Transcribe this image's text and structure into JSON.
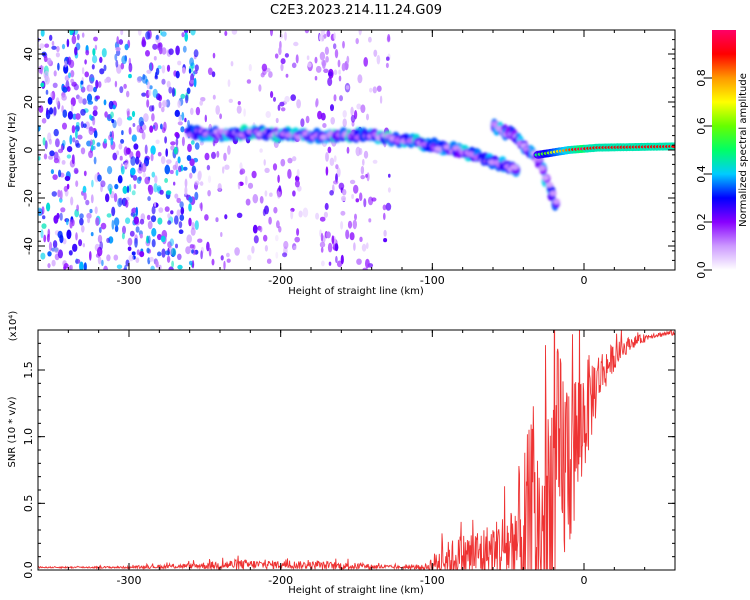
{
  "figure": {
    "title": "C2E3.2023.214.11.24.G09"
  },
  "chart_data": [
    {
      "type": "heatmap",
      "title": "C2E3.2023.214.11.24.G09",
      "xlabel": "Height of straight line (km)",
      "ylabel": "Frequency (Hz)",
      "xlim": [
        -360,
        60
      ],
      "ylim": [
        -50,
        50
      ],
      "x_ticks": [
        -300,
        -200,
        -100,
        0
      ],
      "x_tick_labels": [
        "-300",
        "-200",
        "-100",
        "0"
      ],
      "y_ticks": [
        -40,
        -20,
        0,
        20,
        40
      ],
      "y_tick_labels": [
        "-40",
        "-20",
        "0",
        "20",
        "40"
      ],
      "colorbar": {
        "label": "Normalized spectral amplitude",
        "range": [
          0,
          1
        ],
        "ticks": [
          0.0,
          0.2,
          0.4,
          0.6,
          0.8
        ],
        "tick_labels": [
          "0.0",
          "0.2",
          "0.4",
          "0.6",
          "0.8"
        ],
        "colors": [
          "#ffffff",
          "#cc99ff",
          "#8800ff",
          "#0000ff",
          "#00ccff",
          "#00ff66",
          "#66ff00",
          "#ffff00",
          "#ff9900",
          "#ff0000",
          "#ff0066"
        ]
      },
      "main_track": [
        {
          "x": -260,
          "y": 7
        },
        {
          "x": -220,
          "y": 7
        },
        {
          "x": -180,
          "y": 6
        },
        {
          "x": -140,
          "y": 6
        },
        {
          "x": -120,
          "y": 4
        },
        {
          "x": -100,
          "y": 2
        },
        {
          "x": -80,
          "y": -1
        },
        {
          "x": -60,
          "y": -5
        },
        {
          "x": -45,
          "y": -8
        }
      ],
      "secondary_track": [
        {
          "x": -60,
          "y": 10
        },
        {
          "x": -45,
          "y": 5
        },
        {
          "x": -30,
          "y": -5
        },
        {
          "x": -20,
          "y": -22
        }
      ],
      "flat_track": [
        {
          "x": -30,
          "y": -2
        },
        {
          "x": -10,
          "y": 0
        },
        {
          "x": 10,
          "y": 1
        },
        {
          "x": 60,
          "y": 1.5
        }
      ]
    },
    {
      "type": "line",
      "xlabel": "Height of straight line (km)",
      "ylabel": "SNR (10 * v/v)",
      "y_multiplier": "(x10⁴)",
      "xlim": [
        -360,
        60
      ],
      "ylim": [
        0,
        1.8
      ],
      "x_ticks": [
        -300,
        -200,
        -100,
        0
      ],
      "x_tick_labels": [
        "-300",
        "-200",
        "-100",
        "0"
      ],
      "y_ticks": [
        0.0,
        0.5,
        1.0,
        1.5
      ],
      "y_tick_labels": [
        "0.0",
        "0.5",
        "1.0",
        "1.5"
      ],
      "line_color": "#ee3333",
      "envelope": {
        "x": [
          -360,
          -300,
          -260,
          -230,
          -200,
          -160,
          -120,
          -105,
          -95,
          -80,
          -70,
          -60,
          -50,
          -42,
          -38,
          -33,
          -28,
          -22,
          -18,
          -12,
          -5,
          0,
          10,
          20,
          30,
          45,
          60
        ],
        "base": [
          0.02,
          0.02,
          0.03,
          0.04,
          0.04,
          0.03,
          0.02,
          0.02,
          0.06,
          0.1,
          0.12,
          0.14,
          0.18,
          0.22,
          0.1,
          0.3,
          0.2,
          0.5,
          0.7,
          0.8,
          0.95,
          1.15,
          1.45,
          1.6,
          1.7,
          1.76,
          1.78
        ],
        "amp": [
          0.005,
          0.008,
          0.02,
          0.04,
          0.03,
          0.03,
          0.01,
          0.02,
          0.12,
          0.18,
          0.2,
          0.22,
          0.3,
          0.6,
          0.9,
          0.9,
          0.8,
          1.1,
          1.0,
          0.8,
          0.6,
          0.45,
          0.2,
          0.1,
          0.05,
          0.02,
          0.02
        ]
      }
    }
  ]
}
